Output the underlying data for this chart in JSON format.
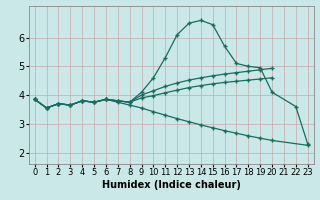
{
  "bg_color": "#cbe8e8",
  "grid_color": "#b0d0d0",
  "line_color": "#1a6b60",
  "xlabel": "Humidex (Indice chaleur)",
  "xlabel_fontsize": 7,
  "tick_fontsize": 6,
  "xlim": [
    -0.5,
    23.5
  ],
  "ylim": [
    1.6,
    7.1
  ],
  "yticks": [
    2,
    3,
    4,
    5,
    6
  ],
  "xticks": [
    0,
    1,
    2,
    3,
    4,
    5,
    6,
    7,
    8,
    9,
    10,
    11,
    12,
    13,
    14,
    15,
    16,
    17,
    18,
    19,
    20,
    21,
    22,
    23
  ],
  "lines": [
    {
      "x": [
        0,
        1,
        2,
        3,
        4,
        5,
        6,
        7,
        8,
        9,
        10,
        11,
        12,
        13,
        14,
        15,
        16,
        17,
        18,
        19,
        20,
        22,
        23
      ],
      "y": [
        3.85,
        3.55,
        3.7,
        3.65,
        3.8,
        3.75,
        3.85,
        3.8,
        3.75,
        4.1,
        4.6,
        5.3,
        6.1,
        6.5,
        6.6,
        6.45,
        5.7,
        5.1,
        5.0,
        4.95,
        4.1,
        3.6,
        2.3
      ]
    },
    {
      "x": [
        0,
        1,
        2,
        3,
        4,
        5,
        6,
        7,
        8,
        9,
        10,
        11,
        12,
        13,
        14,
        15,
        16,
        17,
        18,
        19,
        20
      ],
      "y": [
        3.85,
        3.55,
        3.7,
        3.65,
        3.8,
        3.75,
        3.85,
        3.8,
        3.75,
        4.0,
        4.15,
        4.3,
        4.42,
        4.52,
        4.6,
        4.67,
        4.73,
        4.78,
        4.83,
        4.88,
        4.93
      ]
    },
    {
      "x": [
        0,
        1,
        2,
        3,
        4,
        5,
        6,
        7,
        8,
        9,
        10,
        11,
        12,
        13,
        14,
        15,
        16,
        17,
        18,
        19,
        20
      ],
      "y": [
        3.85,
        3.55,
        3.7,
        3.65,
        3.8,
        3.75,
        3.85,
        3.8,
        3.75,
        3.9,
        3.98,
        4.08,
        4.17,
        4.26,
        4.33,
        4.39,
        4.44,
        4.48,
        4.52,
        4.56,
        4.6
      ]
    },
    {
      "x": [
        0,
        1,
        2,
        3,
        4,
        5,
        6,
        7,
        8,
        9,
        10,
        11,
        12,
        13,
        14,
        15,
        16,
        17,
        18,
        19,
        20,
        23
      ],
      "y": [
        3.85,
        3.55,
        3.7,
        3.65,
        3.8,
        3.75,
        3.85,
        3.75,
        3.65,
        3.55,
        3.42,
        3.3,
        3.18,
        3.07,
        2.96,
        2.86,
        2.76,
        2.67,
        2.58,
        2.5,
        2.42,
        2.25
      ]
    }
  ]
}
